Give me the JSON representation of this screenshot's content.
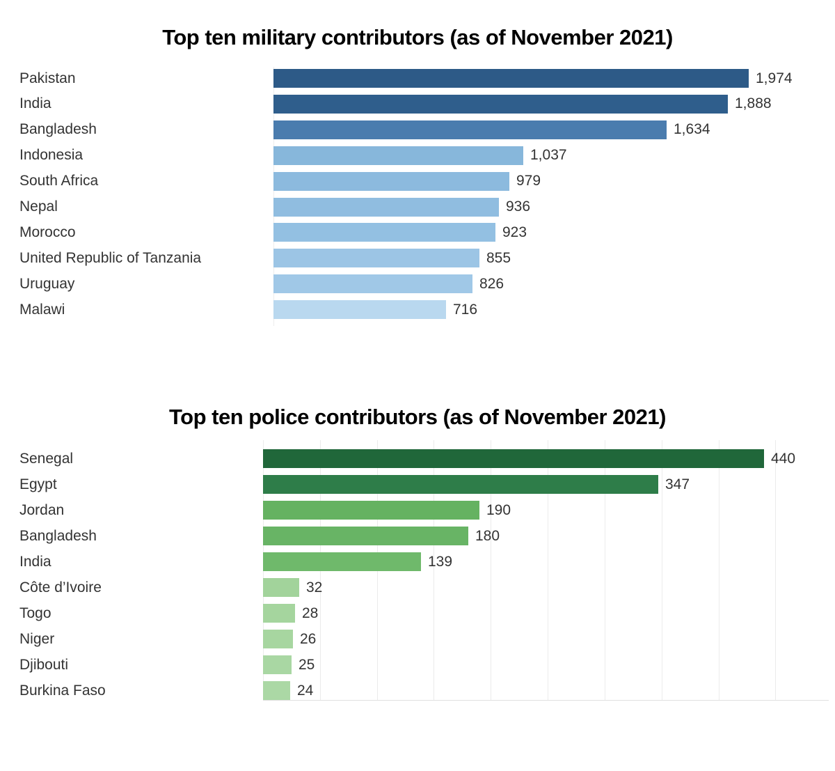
{
  "page": {
    "background_color": "#ffffff",
    "text_color": "#333333",
    "title_color": "#000000",
    "gridline_color": "#ebebeb",
    "axis_line_color": "#e0e0e0"
  },
  "chart_data": [
    {
      "type": "bar",
      "orientation": "horizontal",
      "title": "Top ten military contributors (as of November 2021)",
      "xlabel": "",
      "ylabel": "",
      "xlim": [
        0,
        2000
      ],
      "grid": false,
      "legend": "none",
      "value_label_position": "end-of-bar",
      "categories": [
        "Pakistan",
        "India",
        "Bangladesh",
        "Indonesia",
        "South Africa",
        "Nepal",
        "Morocco",
        "United Republic of Tanzania",
        "Uruguay",
        "Malawi"
      ],
      "values": [
        1974,
        1888,
        1634,
        1037,
        979,
        936,
        923,
        855,
        826,
        716
      ],
      "value_labels": [
        "1,974",
        "1,888",
        "1,634",
        "1,037",
        "979",
        "936",
        "923",
        "855",
        "826",
        "716"
      ],
      "bar_colors": [
        "#2d5a87",
        "#2f5e8c",
        "#4a7cae",
        "#87b7db",
        "#8cbade",
        "#90bde0",
        "#93c0e2",
        "#9cc5e5",
        "#a0c8e7",
        "#b9d8ef"
      ]
    },
    {
      "type": "bar",
      "orientation": "horizontal",
      "title": "Top ten police contributors (as of November 2021)",
      "xlabel": "",
      "ylabel": "",
      "xlim": [
        0,
        497
      ],
      "grid": true,
      "grid_interval": 50,
      "legend": "none",
      "value_label_position": "end-of-bar",
      "categories": [
        "Senegal",
        "Egypt",
        "Jordan",
        "Bangladesh",
        "India",
        "Côte d’Ivoire",
        "Togo",
        "Niger",
        "Djibouti",
        "Burkina Faso"
      ],
      "values": [
        440,
        347,
        190,
        180,
        139,
        32,
        28,
        26,
        25,
        24
      ],
      "value_labels": [
        "440",
        "347",
        "190",
        "180",
        "139",
        "32",
        "28",
        "26",
        "25",
        "24"
      ],
      "bar_colors": [
        "#20673a",
        "#2e7d49",
        "#65b261",
        "#68b465",
        "#6fb96b",
        "#a2d39b",
        "#a5d59e",
        "#a7d6a0",
        "#a9d7a3",
        "#abd8a5"
      ]
    }
  ]
}
